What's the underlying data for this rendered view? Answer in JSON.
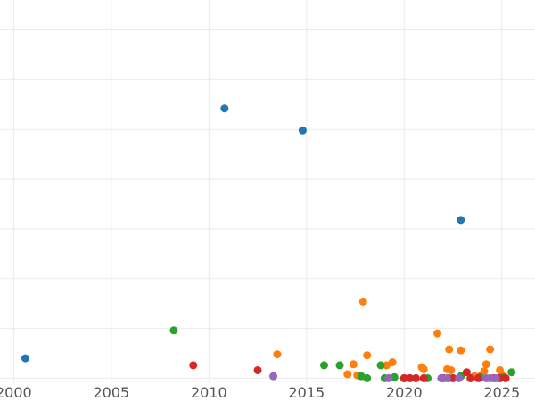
{
  "chart_data": {
    "type": "scatter",
    "title": "",
    "xlabel": "",
    "ylabel": "",
    "xlim": [
      1999.3,
      2026.7
    ],
    "ylim": [
      -0.5,
      38
    ],
    "x_ticks": [
      {
        "value": 2000,
        "label": "2000"
      },
      {
        "value": 2005,
        "label": "2005"
      },
      {
        "value": 2010,
        "label": "2010"
      },
      {
        "value": 2015,
        "label": "2015"
      },
      {
        "value": 2020,
        "label": "2020"
      },
      {
        "value": 2025,
        "label": "2025"
      }
    ],
    "y_gridlines": [
      0,
      5,
      10,
      15,
      20,
      25,
      30,
      35
    ],
    "grid": true,
    "legend": "none",
    "series": [
      {
        "color": "#1f77b4",
        "points": [
          {
            "x": 2000.6,
            "y": 2.0
          },
          {
            "x": 2010.8,
            "y": 27.1
          },
          {
            "x": 2014.8,
            "y": 24.9
          },
          {
            "x": 2022.9,
            "y": 15.9
          }
        ]
      },
      {
        "color": "#ff7f0e",
        "points": [
          {
            "x": 2013.5,
            "y": 2.4
          },
          {
            "x": 2017.1,
            "y": 0.4
          },
          {
            "x": 2017.4,
            "y": 1.4
          },
          {
            "x": 2017.6,
            "y": 0.3
          },
          {
            "x": 2017.9,
            "y": 7.7
          },
          {
            "x": 2018.1,
            "y": 2.3
          },
          {
            "x": 2019.1,
            "y": 1.3
          },
          {
            "x": 2019.4,
            "y": 1.6
          },
          {
            "x": 2020.9,
            "y": 1.1
          },
          {
            "x": 2021.0,
            "y": 0.9
          },
          {
            "x": 2021.7,
            "y": 4.5
          },
          {
            "x": 2022.2,
            "y": 0.9
          },
          {
            "x": 2022.3,
            "y": 2.9
          },
          {
            "x": 2022.4,
            "y": 0.8
          },
          {
            "x": 2022.9,
            "y": 2.8
          },
          {
            "x": 2023.6,
            "y": 0.2
          },
          {
            "x": 2023.9,
            "y": 0.2
          },
          {
            "x": 2024.1,
            "y": 0.7
          },
          {
            "x": 2024.2,
            "y": 1.4
          },
          {
            "x": 2024.4,
            "y": 2.9
          },
          {
            "x": 2024.9,
            "y": 0.8
          },
          {
            "x": 2025.0,
            "y": 0.3
          }
        ]
      },
      {
        "color": "#2ca02c",
        "points": [
          {
            "x": 2008.2,
            "y": 4.8
          },
          {
            "x": 2015.9,
            "y": 1.3
          },
          {
            "x": 2016.7,
            "y": 1.3
          },
          {
            "x": 2017.8,
            "y": 0.2
          },
          {
            "x": 2018.1,
            "y": 0.0
          },
          {
            "x": 2018.8,
            "y": 1.3
          },
          {
            "x": 2019.0,
            "y": 0.0
          },
          {
            "x": 2019.5,
            "y": 0.1
          },
          {
            "x": 2020.0,
            "y": 0.0
          },
          {
            "x": 2021.2,
            "y": 0.0
          },
          {
            "x": 2022.3,
            "y": 0.0
          },
          {
            "x": 2022.9,
            "y": 0.2
          },
          {
            "x": 2023.4,
            "y": 0.0
          },
          {
            "x": 2023.9,
            "y": 0.1
          },
          {
            "x": 2025.1,
            "y": 0.1
          },
          {
            "x": 2025.5,
            "y": 0.6
          }
        ]
      },
      {
        "color": "#d62728",
        "points": [
          {
            "x": 2009.2,
            "y": 1.3
          },
          {
            "x": 2012.5,
            "y": 0.8
          },
          {
            "x": 2020.0,
            "y": 0.0
          },
          {
            "x": 2020.3,
            "y": 0.0
          },
          {
            "x": 2020.6,
            "y": 0.0
          },
          {
            "x": 2021.0,
            "y": 0.0
          },
          {
            "x": 2022.0,
            "y": 0.0
          },
          {
            "x": 2022.5,
            "y": 0.0
          },
          {
            "x": 2023.2,
            "y": 0.6
          },
          {
            "x": 2023.4,
            "y": 0.0
          },
          {
            "x": 2023.8,
            "y": 0.0
          },
          {
            "x": 2024.6,
            "y": 0.0
          },
          {
            "x": 2024.9,
            "y": 0.0
          },
          {
            "x": 2025.2,
            "y": 0.0
          }
        ]
      },
      {
        "color": "#9467bd",
        "points": [
          {
            "x": 2013.3,
            "y": 0.2
          },
          {
            "x": 2019.2,
            "y": 0.0
          },
          {
            "x": 2021.9,
            "y": 0.0
          },
          {
            "x": 2022.2,
            "y": 0.0
          },
          {
            "x": 2022.8,
            "y": 0.0
          },
          {
            "x": 2024.2,
            "y": 0.0
          },
          {
            "x": 2024.4,
            "y": 0.0
          },
          {
            "x": 2024.7,
            "y": 0.0
          }
        ]
      }
    ]
  }
}
